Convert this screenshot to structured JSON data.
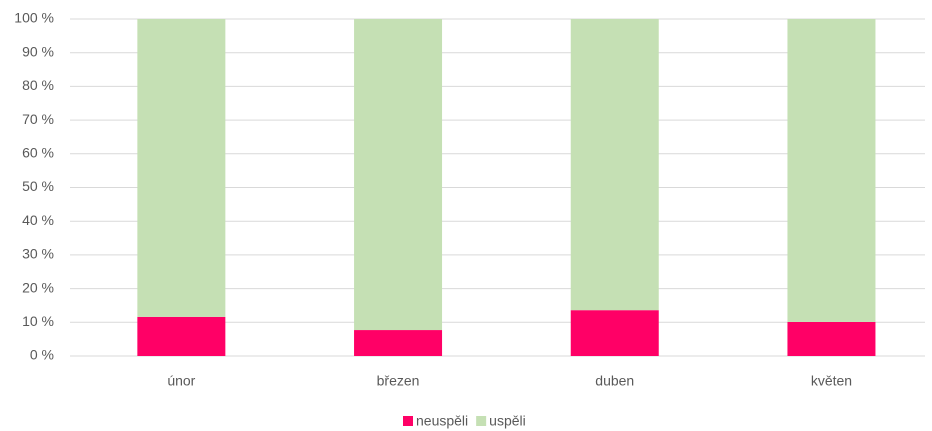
{
  "chart_data": {
    "type": "stacked_bar",
    "categories": [
      "únor",
      "březen",
      "duben",
      "květen"
    ],
    "series": [
      {
        "name": "neuspěli",
        "color": "#ff0066",
        "values": [
          11.6,
          7.7,
          13.6,
          10.1
        ]
      },
      {
        "name": "uspěli",
        "color": "#c5e0b4",
        "values": [
          88.4,
          92.3,
          86.4,
          89.9
        ]
      }
    ],
    "ylim": [
      0,
      100
    ],
    "yticks": [
      {
        "value": 0,
        "label": "0 %"
      },
      {
        "value": 10,
        "label": "10 %"
      },
      {
        "value": 20,
        "label": "20 %"
      },
      {
        "value": 30,
        "label": "30 %"
      },
      {
        "value": 40,
        "label": "40 %"
      },
      {
        "value": 50,
        "label": "50 %"
      },
      {
        "value": 60,
        "label": "60 %"
      },
      {
        "value": 70,
        "label": "70 %"
      },
      {
        "value": 80,
        "label": "80 %"
      },
      {
        "value": 90,
        "label": "90 %"
      },
      {
        "value": 100,
        "label": "100 %"
      }
    ],
    "grid": true,
    "legend": "bottom"
  }
}
